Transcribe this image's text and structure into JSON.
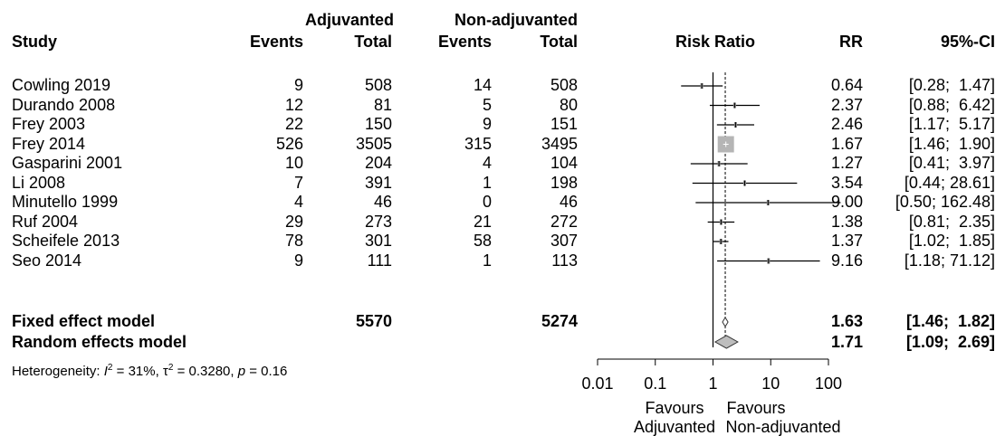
{
  "headers": {
    "group_exp": "Adjuvanted",
    "group_ctrl": "Non-adjuvanted",
    "study": "Study",
    "events": "Events",
    "total": "Total",
    "risk_ratio": "Risk Ratio",
    "rr": "RR",
    "ci": "95%-CI"
  },
  "studies": [
    {
      "name": "Cowling 2019",
      "e_ev": "9",
      "e_tot": "508",
      "c_ev": "14",
      "c_tot": "508",
      "rr": "0.64",
      "ci": "[0.28;  1.47]"
    },
    {
      "name": "Durando 2008",
      "e_ev": "12",
      "e_tot": "81",
      "c_ev": "5",
      "c_tot": "80",
      "rr": "2.37",
      "ci": "[0.88;  6.42]"
    },
    {
      "name": "Frey 2003",
      "e_ev": "22",
      "e_tot": "150",
      "c_ev": "9",
      "c_tot": "151",
      "rr": "2.46",
      "ci": "[1.17;  5.17]"
    },
    {
      "name": "Frey 2014",
      "e_ev": "526",
      "e_tot": "3505",
      "c_ev": "315",
      "c_tot": "3495",
      "rr": "1.67",
      "ci": "[1.46;  1.90]"
    },
    {
      "name": "Gasparini 2001",
      "e_ev": "10",
      "e_tot": "204",
      "c_ev": "4",
      "c_tot": "104",
      "rr": "1.27",
      "ci": "[0.41;  3.97]"
    },
    {
      "name": "Li 2008",
      "e_ev": "7",
      "e_tot": "391",
      "c_ev": "1",
      "c_tot": "198",
      "rr": "3.54",
      "ci": "[0.44; 28.61]"
    },
    {
      "name": "Minutello 1999",
      "e_ev": "4",
      "e_tot": "46",
      "c_ev": "0",
      "c_tot": "46",
      "rr": "9.00",
      "ci": "[0.50; 162.48]"
    },
    {
      "name": "Ruf 2004",
      "e_ev": "29",
      "e_tot": "273",
      "c_ev": "21",
      "c_tot": "272",
      "rr": "1.38",
      "ci": "[0.81;  2.35]"
    },
    {
      "name": "Scheifele 2013",
      "e_ev": "78",
      "e_tot": "301",
      "c_ev": "58",
      "c_tot": "307",
      "rr": "1.37",
      "ci": "[1.02;  1.85]"
    },
    {
      "name": "Seo 2014",
      "e_ev": "9",
      "e_tot": "111",
      "c_ev": "1",
      "c_tot": "113",
      "rr": "9.16",
      "ci": "[1.18; 71.12]"
    }
  ],
  "models": [
    {
      "name": "Fixed effect model",
      "e_tot": "5570",
      "c_tot": "5274",
      "rr": "1.63",
      "ci": "[1.46;  1.82]"
    },
    {
      "name": "Random effects model",
      "e_tot": "",
      "c_tot": "",
      "rr": "1.71",
      "ci": "[1.09;  2.69]"
    }
  ],
  "heterogeneity": {
    "label": "Heterogeneity: ",
    "i2_sym": "I",
    "i2_sup": "2",
    "i2_val": " = 31%, ",
    "tau_sym": "τ",
    "tau_sup": "2",
    "tau_val": " = 0.3280, ",
    "p_sym": "p",
    "p_val": " = 0.16"
  },
  "axis_labels": {
    "left_line1": "Favours",
    "left_line2": "Adjuvanted",
    "right_line1": "Favours",
    "right_line2": "Non-adjuvanted"
  },
  "chart_data": {
    "type": "forest",
    "scale": "log",
    "xlim": [
      0.01,
      100
    ],
    "ticks": [
      0.01,
      0.1,
      1,
      10,
      100
    ],
    "tick_labels": [
      "0.01",
      "0.1",
      "1",
      "10",
      "100"
    ],
    "null_value": 1,
    "points": [
      {
        "study": "Cowling 2019",
        "rr": 0.64,
        "lo": 0.28,
        "hi": 1.47
      },
      {
        "study": "Durando 2008",
        "rr": 2.37,
        "lo": 0.88,
        "hi": 6.42
      },
      {
        "study": "Frey 2003",
        "rr": 2.46,
        "lo": 1.17,
        "hi": 5.17
      },
      {
        "study": "Frey 2014",
        "rr": 1.67,
        "lo": 1.46,
        "hi": 1.9,
        "box": "large"
      },
      {
        "study": "Gasparini 2001",
        "rr": 1.27,
        "lo": 0.41,
        "hi": 3.97
      },
      {
        "study": "Li 2008",
        "rr": 3.54,
        "lo": 0.44,
        "hi": 28.61
      },
      {
        "study": "Minutello 1999",
        "rr": 9.0,
        "lo": 0.5,
        "hi": 162.48
      },
      {
        "study": "Ruf 2004",
        "rr": 1.38,
        "lo": 0.81,
        "hi": 2.35
      },
      {
        "study": "Scheifele 2013",
        "rr": 1.37,
        "lo": 1.02,
        "hi": 1.85
      },
      {
        "study": "Seo 2014",
        "rr": 9.16,
        "lo": 1.18,
        "hi": 71.12
      }
    ],
    "summaries": [
      {
        "model": "Fixed effect model",
        "rr": 1.63,
        "lo": 1.46,
        "hi": 1.82
      },
      {
        "model": "Random effects model",
        "rr": 1.71,
        "lo": 1.09,
        "hi": 2.69
      }
    ],
    "summary_line": 1.63,
    "colors": {
      "box": "#b5b5b5",
      "diamond": "#bdbdbd",
      "line": "#000000"
    }
  }
}
